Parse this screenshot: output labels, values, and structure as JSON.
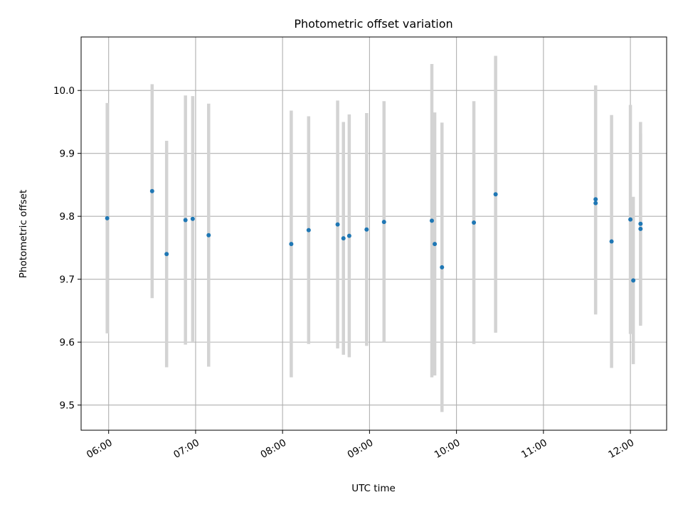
{
  "chart_data": {
    "type": "scatter",
    "title": "Photometric offset variation",
    "xlabel": "UTC time",
    "ylabel": "Photometric offset",
    "x_unit": "UTC time of day (HH:MM)",
    "xlim": [
      "05:41",
      "12:25"
    ],
    "ylim": [
      9.46,
      10.085
    ],
    "grid": true,
    "x_ticks": [
      "06:00",
      "07:00",
      "08:00",
      "09:00",
      "10:00",
      "11:00",
      "12:00"
    ],
    "y_ticks": [
      9.5,
      9.6,
      9.7,
      9.8,
      9.9,
      10.0
    ],
    "y_tick_labels": [
      "9.5",
      "9.6",
      "9.7",
      "9.8",
      "9.9",
      "10.0"
    ],
    "points": [
      {
        "x": "05:59",
        "y": 9.797,
        "err": 0.183
      },
      {
        "x": "06:30",
        "y": 9.84,
        "err": 0.17
      },
      {
        "x": "06:40",
        "y": 9.74,
        "err": 0.18
      },
      {
        "x": "06:53",
        "y": 9.794,
        "err": 0.198
      },
      {
        "x": "06:58",
        "y": 9.796,
        "err": 0.195
      },
      {
        "x": "07:09",
        "y": 9.77,
        "err": 0.209
      },
      {
        "x": "08:06",
        "y": 9.756,
        "err": 0.212
      },
      {
        "x": "08:18",
        "y": 9.778,
        "err": 0.181
      },
      {
        "x": "08:38",
        "y": 9.787,
        "err": 0.197
      },
      {
        "x": "08:42",
        "y": 9.765,
        "err": 0.185
      },
      {
        "x": "08:46",
        "y": 9.769,
        "err": 0.193
      },
      {
        "x": "08:58",
        "y": 9.779,
        "err": 0.185
      },
      {
        "x": "09:10",
        "y": 9.791,
        "err": 0.192
      },
      {
        "x": "09:43",
        "y": 9.793,
        "err": 0.249
      },
      {
        "x": "09:45",
        "y": 9.756,
        "err": 0.209
      },
      {
        "x": "09:50",
        "y": 9.719,
        "err": 0.23
      },
      {
        "x": "10:12",
        "y": 9.79,
        "err": 0.193
      },
      {
        "x": "10:27",
        "y": 9.835,
        "err": 0.22
      },
      {
        "x": "11:36",
        "y": 9.827,
        "err": 0.181
      },
      {
        "x": "11:36",
        "y": 9.821,
        "err": 0.177
      },
      {
        "x": "11:47",
        "y": 9.76,
        "err": 0.201
      },
      {
        "x": "12:00",
        "y": 9.795,
        "err": 0.182
      },
      {
        "x": "12:02",
        "y": 9.698,
        "err": 0.133
      },
      {
        "x": "12:07",
        "y": 9.788,
        "err": 0.162
      },
      {
        "x": "12:07",
        "y": 9.78,
        "err": 0.151
      }
    ],
    "colors": {
      "point": "#1f77b4",
      "errorbar": "#d3d3d3",
      "grid": "#b0b0b0",
      "axes": "#000000"
    }
  }
}
